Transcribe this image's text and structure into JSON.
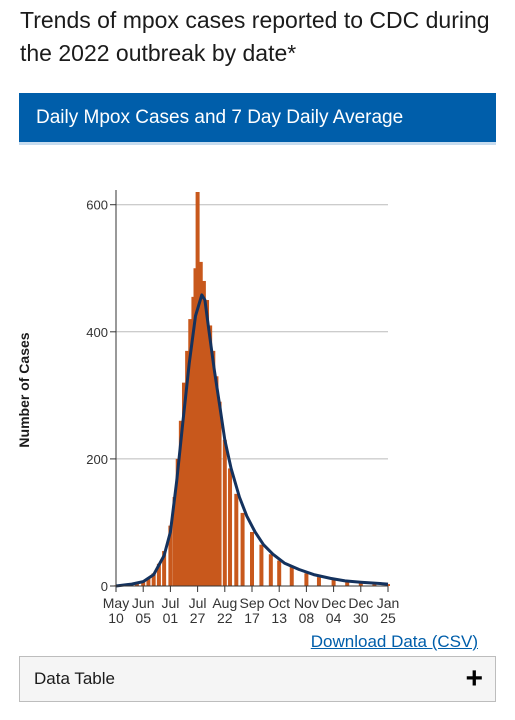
{
  "page": {
    "title": "Trends of mpox cases reported to CDC during the 2022 outbreak by date*"
  },
  "chart_header": {
    "label": "Daily Mpox Cases and 7 Day Daily Average"
  },
  "download": {
    "label": "Download Data (CSV)"
  },
  "data_table": {
    "label": "Data Table",
    "toggle_icon": "plus-icon"
  },
  "colors": {
    "bars": "#c8581c",
    "average_line": "#14325e",
    "header_bg": "#005eaa",
    "link": "#005eaa",
    "grid": "#bbbbbb"
  },
  "chart_data": {
    "type": "bar",
    "ylabel": "Number of Cases",
    "xlabel": "",
    "ylim": [
      0,
      620
    ],
    "yticks": [
      0,
      200,
      400,
      600
    ],
    "grid": true,
    "date_range": [
      "2022-05-10",
      "2023-01-25"
    ],
    "xticks": [
      {
        "date": "2022-05-10",
        "month": "May",
        "day": "10"
      },
      {
        "date": "2022-06-05",
        "month": "Jun",
        "day": "05"
      },
      {
        "date": "2022-07-01",
        "month": "Jul",
        "day": "01"
      },
      {
        "date": "2022-07-27",
        "month": "Jul",
        "day": "27"
      },
      {
        "date": "2022-08-22",
        "month": "Aug",
        "day": "22"
      },
      {
        "date": "2022-09-17",
        "month": "Sep",
        "day": "17"
      },
      {
        "date": "2022-10-13",
        "month": "Oct",
        "day": "13"
      },
      {
        "date": "2022-11-08",
        "month": "Nov",
        "day": "08"
      },
      {
        "date": "2022-12-04",
        "month": "Dec",
        "day": "04"
      },
      {
        "date": "2022-12-30",
        "month": "Dec",
        "day": "30"
      },
      {
        "date": "2023-01-25",
        "month": "Jan",
        "day": "25"
      }
    ],
    "series": [
      {
        "name": "Daily Cases",
        "type": "bar",
        "points": [
          {
            "date": "2022-05-10",
            "value": 1
          },
          {
            "date": "2022-05-20",
            "value": 3
          },
          {
            "date": "2022-05-30",
            "value": 6
          },
          {
            "date": "2022-06-05",
            "value": 8
          },
          {
            "date": "2022-06-10",
            "value": 13
          },
          {
            "date": "2022-06-15",
            "value": 20
          },
          {
            "date": "2022-06-20",
            "value": 35
          },
          {
            "date": "2022-06-25",
            "value": 55
          },
          {
            "date": "2022-07-01",
            "value": 95
          },
          {
            "date": "2022-07-05",
            "value": 140
          },
          {
            "date": "2022-07-08",
            "value": 200
          },
          {
            "date": "2022-07-11",
            "value": 260
          },
          {
            "date": "2022-07-14",
            "value": 320
          },
          {
            "date": "2022-07-17",
            "value": 370
          },
          {
            "date": "2022-07-20",
            "value": 420
          },
          {
            "date": "2022-07-23",
            "value": 455
          },
          {
            "date": "2022-07-25",
            "value": 500
          },
          {
            "date": "2022-07-27",
            "value": 620
          },
          {
            "date": "2022-07-30",
            "value": 510
          },
          {
            "date": "2022-08-02",
            "value": 480
          },
          {
            "date": "2022-08-05",
            "value": 450
          },
          {
            "date": "2022-08-08",
            "value": 410
          },
          {
            "date": "2022-08-11",
            "value": 370
          },
          {
            "date": "2022-08-14",
            "value": 330
          },
          {
            "date": "2022-08-17",
            "value": 290
          },
          {
            "date": "2022-08-22",
            "value": 230
          },
          {
            "date": "2022-08-27",
            "value": 185
          },
          {
            "date": "2022-09-02",
            "value": 145
          },
          {
            "date": "2022-09-08",
            "value": 115
          },
          {
            "date": "2022-09-17",
            "value": 85
          },
          {
            "date": "2022-09-26",
            "value": 65
          },
          {
            "date": "2022-10-05",
            "value": 50
          },
          {
            "date": "2022-10-13",
            "value": 40
          },
          {
            "date": "2022-10-25",
            "value": 30
          },
          {
            "date": "2022-11-08",
            "value": 20
          },
          {
            "date": "2022-11-20",
            "value": 14
          },
          {
            "date": "2022-12-04",
            "value": 10
          },
          {
            "date": "2022-12-17",
            "value": 8
          },
          {
            "date": "2022-12-30",
            "value": 6
          },
          {
            "date": "2023-01-12",
            "value": 4
          },
          {
            "date": "2023-01-25",
            "value": 3
          }
        ]
      },
      {
        "name": "7 Day Daily Average",
        "type": "line",
        "points": [
          {
            "date": "2022-05-10",
            "value": 0
          },
          {
            "date": "2022-05-25",
            "value": 3
          },
          {
            "date": "2022-06-05",
            "value": 7
          },
          {
            "date": "2022-06-15",
            "value": 18
          },
          {
            "date": "2022-06-25",
            "value": 48
          },
          {
            "date": "2022-07-01",
            "value": 85
          },
          {
            "date": "2022-07-07",
            "value": 165
          },
          {
            "date": "2022-07-13",
            "value": 260
          },
          {
            "date": "2022-07-19",
            "value": 350
          },
          {
            "date": "2022-07-25",
            "value": 425
          },
          {
            "date": "2022-07-31",
            "value": 458
          },
          {
            "date": "2022-08-03",
            "value": 450
          },
          {
            "date": "2022-08-07",
            "value": 400
          },
          {
            "date": "2022-08-12",
            "value": 340
          },
          {
            "date": "2022-08-17",
            "value": 285
          },
          {
            "date": "2022-08-22",
            "value": 230
          },
          {
            "date": "2022-08-28",
            "value": 185
          },
          {
            "date": "2022-09-05",
            "value": 140
          },
          {
            "date": "2022-09-12",
            "value": 110
          },
          {
            "date": "2022-09-20",
            "value": 85
          },
          {
            "date": "2022-09-28",
            "value": 65
          },
          {
            "date": "2022-10-07",
            "value": 50
          },
          {
            "date": "2022-10-18",
            "value": 36
          },
          {
            "date": "2022-11-01",
            "value": 26
          },
          {
            "date": "2022-11-15",
            "value": 18
          },
          {
            "date": "2022-12-01",
            "value": 12
          },
          {
            "date": "2022-12-15",
            "value": 8
          },
          {
            "date": "2022-12-30",
            "value": 6
          },
          {
            "date": "2023-01-25",
            "value": 3
          }
        ]
      }
    ]
  }
}
